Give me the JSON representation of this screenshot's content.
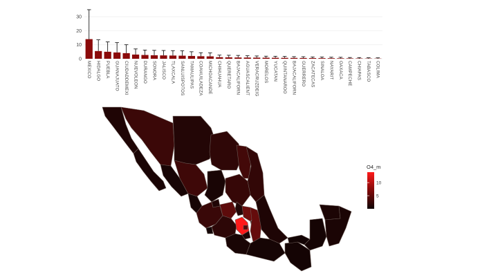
{
  "chart_data": [
    {
      "type": "bar",
      "categories": [
        "MEXICO",
        "HIDALGO",
        "PUEBLA",
        "GUANAJUATO",
        "CIUDADDEMEXI",
        "NUEVOLEON",
        "DURANGO",
        "SONORA",
        "JALISCO",
        "TLAXCALA",
        "SANLUISPOTOS",
        "TAMAULIPAS",
        "COAHUILADEZA",
        "MICHOACANDE",
        "CHIHUAHUA",
        "QUERETARO",
        "BAJACALIFORN",
        "AGUASCALIENT",
        "VERACRUZDEIG",
        "MORELOS",
        "YUCATAN",
        "QUINTANAROO",
        "BAJACALIFORN",
        "GUERRERO",
        "ZACATECAS",
        "SINALOA",
        "NAYARIT",
        "OAXACA",
        "CAMPECHE",
        "CHIAPAS",
        "TABASCO",
        "COLIMA"
      ],
      "values": [
        14,
        5.5,
        5,
        4.5,
        4,
        3,
        2.7,
        2.5,
        2.4,
        2.3,
        2.2,
        2,
        1.8,
        1.7,
        1.1,
        1,
        0.9,
        0.85,
        0.8,
        0.75,
        0.7,
        0.65,
        0.6,
        0.55,
        0.5,
        0.45,
        0.4,
        0.35,
        0.3,
        0.25,
        0.2,
        0.15
      ],
      "errors": [
        21,
        8,
        7,
        7,
        6,
        4,
        3.5,
        3.5,
        3.5,
        3.5,
        3.5,
        3,
        2.5,
        2.5,
        1.5,
        1.5,
        1.5,
        1.3,
        1.2,
        1.1,
        1.1,
        1.0,
        0.9,
        0.9,
        0.8,
        0.8,
        0.7,
        0.7,
        0.6,
        0.6,
        0.5,
        0.5
      ],
      "ylim": [
        0,
        35
      ],
      "yticks": [
        0,
        10,
        20,
        30
      ],
      "bar_color": "#8b0a0a",
      "error_color": "#000000",
      "grid": true
    },
    {
      "type": "choropleth",
      "legend_title": "O4_m",
      "legend_ticks": [
        5,
        10
      ],
      "legend_range": [
        0,
        14
      ],
      "color_low": "#100404",
      "color_high": "#ff1a1a",
      "legend_placement": "right",
      "regions": [
        {
          "name": "BAJACALIFORNIA",
          "value": 0.9
        },
        {
          "name": "BAJACALIFORNIASUR",
          "value": 0.6
        },
        {
          "name": "SONORA",
          "value": 2.5
        },
        {
          "name": "CHIHUAHUA",
          "value": 1.1
        },
        {
          "name": "COAHUILADEZARAGOZA",
          "value": 1.8
        },
        {
          "name": "NUEVOLEON",
          "value": 3
        },
        {
          "name": "TAMAULIPAS",
          "value": 2
        },
        {
          "name": "SINALOA",
          "value": 0.45
        },
        {
          "name": "DURANGO",
          "value": 2.7
        },
        {
          "name": "ZACATECAS",
          "value": 0.5
        },
        {
          "name": "SANLUISPOTOSI",
          "value": 2.2
        },
        {
          "name": "NAYARIT",
          "value": 0.4
        },
        {
          "name": "AGUASCALIENTES",
          "value": 0.85
        },
        {
          "name": "JALISCO",
          "value": 2.4
        },
        {
          "name": "GUANAJUATO",
          "value": 4.5
        },
        {
          "name": "QUERETARO",
          "value": 1
        },
        {
          "name": "HIDALGO",
          "value": 5.5
        },
        {
          "name": "COLIMA",
          "value": 0.15
        },
        {
          "name": "MICHOACANDEOCAMPO",
          "value": 1.7
        },
        {
          "name": "MEXICO",
          "value": 14
        },
        {
          "name": "CIUDADDEMEXICO",
          "value": 4
        },
        {
          "name": "MORELOS",
          "value": 0.75
        },
        {
          "name": "TLAXCALA",
          "value": 2.3
        },
        {
          "name": "PUEBLA",
          "value": 5
        },
        {
          "name": "VERACRUZDEIGNACIODELALLAVE",
          "value": 0.8
        },
        {
          "name": "GUERRERO",
          "value": 0.55
        },
        {
          "name": "OAXACA",
          "value": 0.35
        },
        {
          "name": "CHIAPAS",
          "value": 0.25
        },
        {
          "name": "TABASCO",
          "value": 0.2
        },
        {
          "name": "CAMPECHE",
          "value": 0.3
        },
        {
          "name": "YUCATAN",
          "value": 0.7
        },
        {
          "name": "QUINTANAROO",
          "value": 0.65
        }
      ]
    }
  ]
}
